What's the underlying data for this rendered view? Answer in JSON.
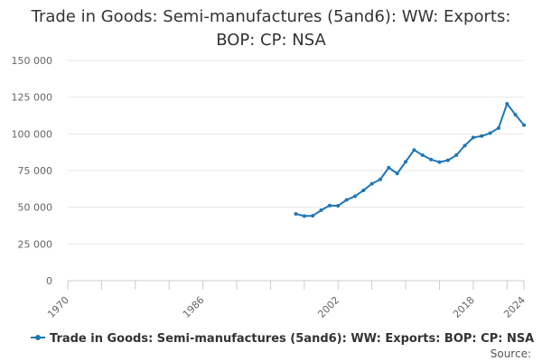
{
  "chart_data": {
    "type": "line",
    "title_line1": "Trade in Goods: Semi-manufactures (5and6): WW: Exports:",
    "title_line2": "BOP: CP: NSA",
    "xlabel": "",
    "ylabel": "",
    "xlim": [
      1970,
      2024
    ],
    "ylim": [
      0,
      150000
    ],
    "x_ticks": [
      "1970",
      "1986",
      "2002",
      "2018",
      "2024"
    ],
    "y_ticks": [
      "0",
      "25 000",
      "50 000",
      "75 000",
      "100 000",
      "125 000",
      "150 000"
    ],
    "grid": true,
    "legend_position": "bottom",
    "series": [
      {
        "name": "Trade in Goods: Semi-manufactures (5and6): WW: Exports: BOP: CP: NSA",
        "color": "#1f77b4",
        "x": [
          1997,
          1998,
          1999,
          2000,
          2001,
          2002,
          2003,
          2004,
          2005,
          2006,
          2007,
          2008,
          2009,
          2010,
          2011,
          2012,
          2013,
          2014,
          2015,
          2016,
          2017,
          2018,
          2019,
          2020,
          2021,
          2022,
          2023,
          2024
        ],
        "y": [
          45500,
          44000,
          44200,
          48000,
          51200,
          51000,
          55000,
          57500,
          61500,
          66000,
          69000,
          77000,
          73000,
          81000,
          89000,
          85500,
          82500,
          80800,
          82000,
          85500,
          92000,
          97500,
          98500,
          100500,
          104000,
          120500,
          113000,
          106000
        ]
      }
    ]
  },
  "source_label": "Source:"
}
